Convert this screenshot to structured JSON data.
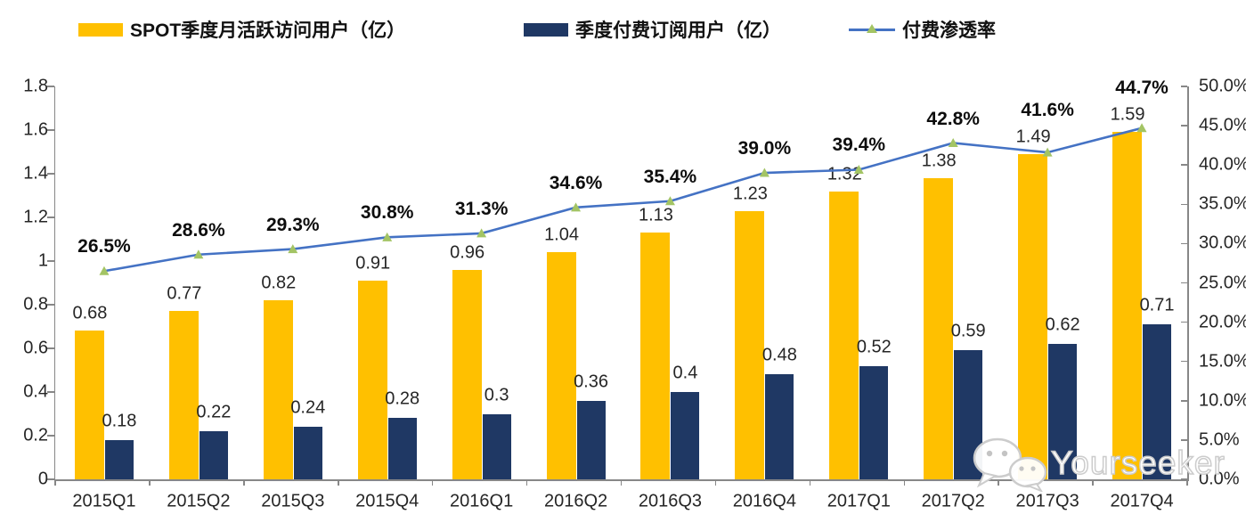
{
  "legend": [
    {
      "label": "SPOT季度月活跃访问用户（亿）",
      "swatch": "bar",
      "color": "#FFC000"
    },
    {
      "label": "季度付费订阅用户（亿）",
      "swatch": "bar",
      "color": "#1F3864"
    },
    {
      "label": "付费渗透率",
      "swatch": "line",
      "color": "#4472C4",
      "marker_color": "#A3C464"
    }
  ],
  "watermark": {
    "icon": "wechat-icon",
    "text": "Yourseeker"
  },
  "chart_data": {
    "type": "bar+line",
    "categories": [
      "2015Q1",
      "2015Q2",
      "2015Q3",
      "2015Q4",
      "2016Q1",
      "2016Q2",
      "2016Q3",
      "2016Q4",
      "2017Q1",
      "2017Q2",
      "2017Q3",
      "2017Q4"
    ],
    "series": [
      {
        "name": "SPOT季度月活跃访问用户（亿）",
        "type": "bar",
        "axis": "left",
        "color": "#FFC000",
        "values": [
          0.68,
          0.77,
          0.82,
          0.91,
          0.96,
          1.04,
          1.13,
          1.23,
          1.32,
          1.38,
          1.49,
          1.59
        ],
        "labels": [
          "0.68",
          "0.77",
          "0.82",
          "0.91",
          "0.96",
          "1.04",
          "1.13",
          "1.23",
          "1.32",
          "1.38",
          "1.49",
          "1.59"
        ]
      },
      {
        "name": "季度付费订阅用户（亿）",
        "type": "bar",
        "axis": "left",
        "color": "#1F3864",
        "values": [
          0.18,
          0.22,
          0.24,
          0.28,
          0.3,
          0.36,
          0.4,
          0.48,
          0.52,
          0.59,
          0.62,
          0.71
        ],
        "labels": [
          "0.18",
          "0.22",
          "0.24",
          "0.28",
          "0.3",
          "0.36",
          "0.4",
          "0.48",
          "0.52",
          "0.59",
          "0.62",
          "0.71"
        ]
      },
      {
        "name": "付费渗透率",
        "type": "line",
        "axis": "right",
        "color": "#4472C4",
        "marker": "triangle",
        "marker_color": "#A3C464",
        "values": [
          26.5,
          28.6,
          29.3,
          30.8,
          31.3,
          34.6,
          35.4,
          39.0,
          39.4,
          42.8,
          41.6,
          44.7
        ],
        "labels": [
          "26.5%",
          "28.6%",
          "29.3%",
          "30.8%",
          "31.3%",
          "34.6%",
          "35.4%",
          "39.0%",
          "39.4%",
          "42.8%",
          "41.6%",
          "44.7%"
        ]
      }
    ],
    "left_axis": {
      "min": 0,
      "max": 1.8,
      "step": 0.2,
      "tick_labels": [
        "0",
        "0.2",
        "0.4",
        "0.6",
        "0.8",
        "1",
        "1.2",
        "1.4",
        "1.6",
        "1.8"
      ]
    },
    "right_axis": {
      "min": 0,
      "max": 50,
      "step": 5,
      "tick_labels": [
        "0.0%",
        "5.0%",
        "10.0%",
        "15.0%",
        "20.0%",
        "25.0%",
        "30.0%",
        "35.0%",
        "40.0%",
        "45.0%",
        "50.0%"
      ]
    },
    "grid": false,
    "legend_position": "top"
  }
}
